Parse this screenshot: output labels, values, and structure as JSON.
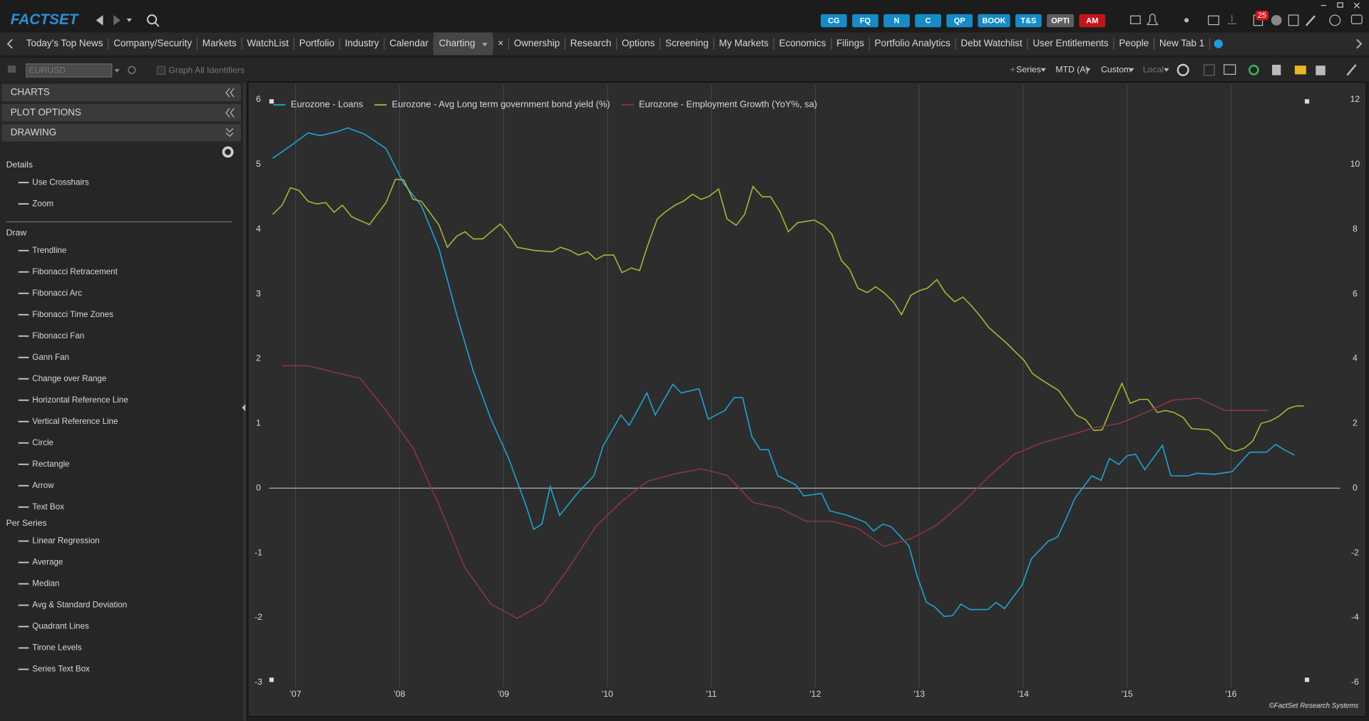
{
  "header": {
    "logo": "FACTSET",
    "buttons": [
      {
        "label": "CG",
        "color": "#168bc6"
      },
      {
        "label": "FQ",
        "color": "#168bc6"
      },
      {
        "label": "N",
        "color": "#168bc6"
      },
      {
        "label": "C",
        "color": "#168bc6"
      },
      {
        "label": "QP",
        "color": "#168bc6"
      },
      {
        "label": "BOOK",
        "color": "#168bc6"
      },
      {
        "label": "T&S",
        "color": "#168bc6"
      },
      {
        "label": "OPTI",
        "color": "#5e5e5e"
      },
      {
        "label": "AM",
        "color": "#c4141b"
      }
    ],
    "badge": "25"
  },
  "tabs": {
    "items": [
      "Today's Top News",
      "Company/Security",
      "Markets",
      "WatchList",
      "Portfolio",
      "Industry",
      "Calendar",
      "Charting",
      "×",
      "Ownership",
      "Research",
      "Options",
      "Screening",
      "My Markets",
      "Economics",
      "Filings",
      "Portfolio Analytics",
      "Debt Watchlist",
      "User Entitlements",
      "People",
      "New Tab 1"
    ],
    "active": "Charting"
  },
  "toolbar": {
    "symbol": "EURUSD",
    "graph_all": "Graph All Identifiers",
    "series": "Series",
    "period": "MTD (A)",
    "custom": "Custom",
    "local": "Local"
  },
  "sidebar": {
    "panels": [
      "CHARTS",
      "PLOT OPTIONS",
      "DRAWING"
    ],
    "sections": [
      {
        "title": "Details",
        "items": [
          "Use Crosshairs",
          "Zoom"
        ]
      },
      {
        "title": "Draw",
        "items": [
          "Trendline",
          "Fibonacci Retracement",
          "Fibonacci Arc",
          "Fibonacci Time Zones",
          "Fibonacci Fan",
          "Gann Fan",
          "Change over Range",
          "Horizontal Reference Line",
          "Vertical Reference Line",
          "Circle",
          "Rectangle",
          "Arrow",
          "Text Box"
        ]
      },
      {
        "title": "Per Series",
        "items": [
          "Linear Regression",
          "Average",
          "Median",
          "Avg & Standard Deviation",
          "Quadrant Lines",
          "Tirone Levels",
          "Series Text Box"
        ]
      }
    ]
  },
  "chart_data": {
    "type": "line",
    "credit": "©FactSet Research Systems",
    "legend": "top-left",
    "grid": "x",
    "xlim": [
      2006.55,
      2017.05
    ],
    "xticks": [
      {
        "value": 2007,
        "label": "'07"
      },
      {
        "value": 2008,
        "label": "'08"
      },
      {
        "value": 2009,
        "label": "'09"
      },
      {
        "value": 2010,
        "label": "'10"
      },
      {
        "value": 2011,
        "label": "'11"
      },
      {
        "value": 2012,
        "label": "'12"
      },
      {
        "value": 2013,
        "label": "'13"
      },
      {
        "value": 2014,
        "label": "'14"
      },
      {
        "value": 2015,
        "label": "'15"
      },
      {
        "value": 2016,
        "label": "'16"
      }
    ],
    "ylim": [
      -3,
      6
    ],
    "yticks": [
      -3,
      -2,
      -1,
      0,
      1,
      2,
      3,
      4,
      5,
      6
    ],
    "y2lim": [
      -6,
      12
    ],
    "y2ticks": [
      -6,
      -4,
      -2,
      0,
      2,
      4,
      6,
      8,
      10,
      12
    ],
    "series": [
      {
        "name": "Eurozone - Loans",
        "color": "#1fa3d4",
        "axis": "y2",
        "x": [
          2006.78,
          2006.95,
          2007.12,
          2007.24,
          2007.41,
          2007.5,
          2007.66,
          2007.87,
          2008.04,
          2008.21,
          2008.38,
          2008.55,
          2008.71,
          2008.88,
          2009.05,
          2009.22,
          2009.29,
          2009.37,
          2009.45,
          2009.54,
          2009.71,
          2009.87,
          2009.96,
          2010.13,
          2010.21,
          2010.38,
          2010.46,
          2010.63,
          2010.71,
          2010.88,
          2010.97,
          2011.13,
          2011.22,
          2011.3,
          2011.39,
          2011.47,
          2011.55,
          2011.64,
          2011.81,
          2011.89,
          2012.06,
          2012.14,
          2012.31,
          2012.48,
          2012.56,
          2012.65,
          2012.73,
          2012.9,
          2012.98,
          2013.07,
          2013.15,
          2013.24,
          2013.32,
          2013.4,
          2013.49,
          2013.66,
          2013.74,
          2013.82,
          2013.99,
          2014.08,
          2014.24,
          2014.33,
          2014.41,
          2014.5,
          2014.66,
          2014.75,
          2014.83,
          2014.92,
          2015,
          2015.08,
          2015.17,
          2015.34,
          2015.42,
          2015.59,
          2015.67,
          2015.84,
          2016.01,
          2016.18,
          2016.34,
          2016.43,
          2016.51,
          2016.61
        ],
        "values": [
          10.19,
          10.57,
          10.97,
          10.89,
          11.02,
          11.13,
          10.94,
          10.49,
          9.41,
          8.73,
          7.39,
          5.36,
          3.61,
          2.13,
          0.92,
          -0.57,
          -1.27,
          -1.11,
          0.05,
          -0.84,
          -0.16,
          0.38,
          1.32,
          2.26,
          1.94,
          2.94,
          2.26,
          3.21,
          2.94,
          3.07,
          2.13,
          2.4,
          2.8,
          2.8,
          1.59,
          1.19,
          1.19,
          0.38,
          0.11,
          -0.24,
          -0.16,
          -0.7,
          -0.84,
          -1.05,
          -1.32,
          -1.11,
          -1.19,
          -1.78,
          -2.72,
          -3.53,
          -3.67,
          -3.96,
          -3.94,
          -3.58,
          -3.75,
          -3.75,
          -3.53,
          -3.72,
          -2.99,
          -2.18,
          -1.64,
          -1.51,
          -0.97,
          -0.3,
          0.38,
          0.24,
          0.92,
          0.73,
          1,
          1.05,
          0.57,
          1.32,
          0.38,
          0.38,
          0.46,
          0.43,
          0.51,
          1.11,
          1.11,
          1.35,
          1.19,
          1.02
        ]
      },
      {
        "name": "Eurozone - Avg Long term government bond yield (%)",
        "color": "#a3b933",
        "axis": "y",
        "x": [
          2006.78,
          2006.87,
          2006.95,
          2007.03,
          2007.12,
          2007.2,
          2007.29,
          2007.37,
          2007.45,
          2007.54,
          2007.71,
          2007.87,
          2007.96,
          2008.04,
          2008.13,
          2008.21,
          2008.29,
          2008.38,
          2008.46,
          2008.55,
          2008.63,
          2008.71,
          2008.8,
          2008.88,
          2008.97,
          2009.05,
          2009.13,
          2009.3,
          2009.47,
          2009.55,
          2009.64,
          2009.72,
          2009.81,
          2009.89,
          2009.97,
          2010.06,
          2010.14,
          2010.23,
          2010.31,
          2010.39,
          2010.48,
          2010.56,
          2010.65,
          2010.73,
          2010.82,
          2010.9,
          2010.98,
          2011.07,
          2011.15,
          2011.24,
          2011.32,
          2011.4,
          2011.49,
          2011.57,
          2011.66,
          2011.74,
          2011.83,
          2011.99,
          2012.08,
          2012.16,
          2012.25,
          2012.33,
          2012.41,
          2012.5,
          2012.58,
          2012.66,
          2012.75,
          2012.83,
          2012.92,
          2013,
          2013.08,
          2013.17,
          2013.25,
          2013.34,
          2013.42,
          2013.5,
          2013.59,
          2013.67,
          2013.84,
          2014.01,
          2014.09,
          2014.18,
          2014.34,
          2014.43,
          2014.51,
          2014.6,
          2014.68,
          2014.76,
          2014.85,
          2014.95,
          2015.03,
          2015.12,
          2015.2,
          2015.29,
          2015.37,
          2015.45,
          2015.54,
          2015.62,
          2015.79,
          2015.87,
          2015.96,
          2016.04,
          2016.13,
          2016.21,
          2016.29,
          2016.38,
          2016.46,
          2016.55,
          2016.63,
          2016.7
        ],
        "values": [
          4.23,
          4.37,
          4.64,
          4.6,
          4.43,
          4.39,
          4.41,
          4.26,
          4.37,
          4.19,
          4.07,
          4.41,
          4.77,
          4.76,
          4.46,
          4.43,
          4.26,
          4.06,
          3.72,
          3.89,
          3.96,
          3.85,
          3.85,
          3.96,
          4.08,
          3.92,
          3.72,
          3.67,
          3.65,
          3.72,
          3.67,
          3.6,
          3.65,
          3.53,
          3.6,
          3.6,
          3.33,
          3.4,
          3.36,
          3.76,
          4.16,
          4.27,
          4.37,
          4.43,
          4.54,
          4.46,
          4.51,
          4.62,
          4.16,
          4.06,
          4.23,
          4.66,
          4.5,
          4.5,
          4.27,
          3.96,
          4.1,
          4.14,
          4.06,
          3.92,
          3.52,
          3.38,
          3.09,
          3.02,
          3.11,
          3.02,
          2.88,
          2.68,
          2.98,
          3.05,
          3.09,
          3.22,
          3.02,
          2.88,
          2.95,
          2.82,
          2.65,
          2.48,
          2.24,
          1.97,
          1.77,
          1.67,
          1.51,
          1.31,
          1.13,
          1.06,
          0.89,
          0.9,
          1.25,
          1.62,
          1.31,
          1.37,
          1.37,
          1.17,
          1.2,
          1.17,
          1.09,
          0.92,
          0.9,
          0.8,
          0.62,
          0.57,
          0.62,
          0.73,
          1,
          1.04,
          1.11,
          1.23,
          1.27,
          1.27
        ]
      },
      {
        "name": "Eurozone - Employment Growth (YoY%, sa)",
        "color": "#8a3350",
        "axis": "y",
        "x": [
          2006.87,
          2007.12,
          2007.37,
          2007.62,
          2007.87,
          2008.13,
          2008.38,
          2008.63,
          2008.88,
          2009.13,
          2009.38,
          2009.64,
          2009.89,
          2010.14,
          2010.39,
          2010.65,
          2010.9,
          2011.15,
          2011.4,
          2011.66,
          2011.91,
          2012.16,
          2012.41,
          2012.66,
          2012.92,
          2013.17,
          2013.42,
          2013.67,
          2013.92,
          2014.18,
          2014.43,
          2014.68,
          2014.93,
          2015.18,
          2015.44,
          2015.69,
          2015.94,
          2016.11,
          2016.36
        ],
        "values": [
          1.89,
          1.89,
          1.79,
          1.7,
          1.2,
          0.62,
          -0.26,
          -1.23,
          -1.79,
          -2.01,
          -1.79,
          -1.2,
          -0.59,
          -0.2,
          0.11,
          0.22,
          0.3,
          0.2,
          -0.22,
          -0.31,
          -0.51,
          -0.51,
          -0.62,
          -0.9,
          -0.78,
          -0.57,
          -0.22,
          0.18,
          0.53,
          0.7,
          0.81,
          0.93,
          1,
          1.17,
          1.36,
          1.39,
          1.2,
          1.2,
          1.2
        ]
      }
    ]
  }
}
